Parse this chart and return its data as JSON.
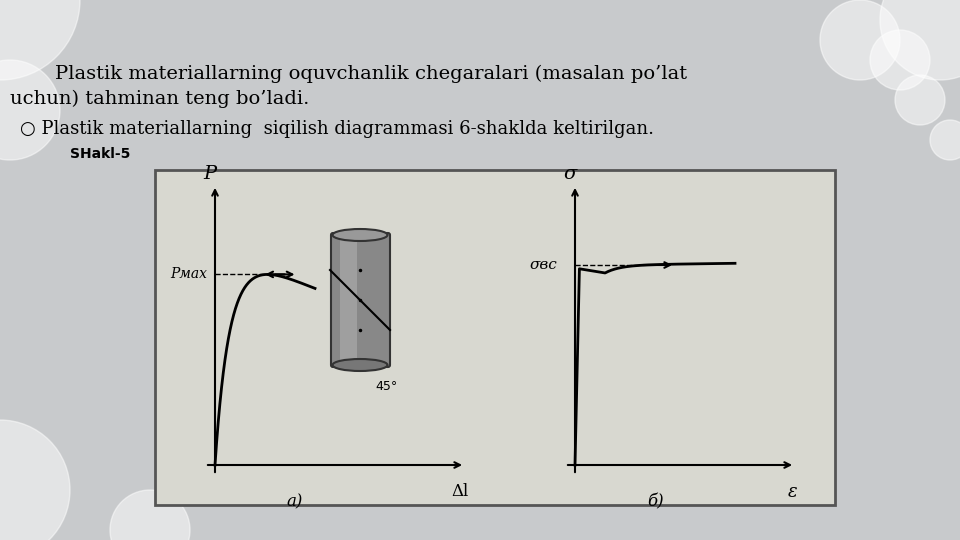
{
  "bg_color": "#d3d3d3",
  "slide_bg": "#c8c8cc",
  "box_bg": "#d8d8d0",
  "title_line1": "Plastik materiallarning oquvchanlik chegaralari (masalan po’lat",
  "title_line2": "uchun) tahminan teng bo’ladi.",
  "subtitle": "○ Plastik materiallarning  siqilish diagrammasi 6-shaklda keltirilgan.",
  "label_shakl": "SHakl-5",
  "left_xlabel": "Δl",
  "left_ylabel": "P",
  "left_pmax": "Pмax",
  "left_sublabel": "a)",
  "right_xlabel": "ε",
  "right_ylabel": "σ",
  "right_sigma_bc": "σвc",
  "right_sublabel": "б)"
}
